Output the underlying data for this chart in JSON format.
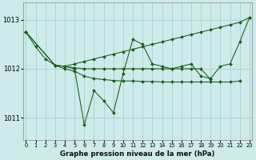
{
  "title": "Graphe pression niveau de la mer (hPa)",
  "bg_color": "#ceeaea",
  "grid_color": "#aed4d4",
  "line_color": "#1a5c1a",
  "marker_color": "#1a5c1a",
  "ylim": [
    1010.55,
    1013.35
  ],
  "yticks": [
    1011,
    1012,
    1013
  ],
  "xlim": [
    -0.3,
    23.3
  ],
  "xticks": [
    0,
    1,
    2,
    3,
    4,
    5,
    6,
    7,
    8,
    9,
    10,
    11,
    12,
    13,
    14,
    15,
    16,
    17,
    18,
    19,
    20,
    21,
    22,
    23
  ],
  "series": [
    {
      "x": [
        0,
        1,
        2,
        3,
        4,
        5,
        6,
        7,
        8,
        9,
        10,
        11,
        12,
        13,
        14,
        15,
        16,
        17,
        18,
        19,
        20,
        21,
        22,
        23
      ],
      "y": [
        1012.75,
        1012.45,
        1012.2,
        1012.07,
        1012.05,
        1012.1,
        1012.15,
        1012.2,
        1012.25,
        1012.3,
        1012.35,
        1012.4,
        1012.45,
        1012.5,
        1012.55,
        1012.6,
        1012.65,
        1012.7,
        1012.75,
        1012.8,
        1012.85,
        1012.9,
        1012.95,
        1013.05
      ]
    },
    {
      "x": [
        0,
        3,
        4,
        5,
        6,
        7,
        8,
        9,
        10,
        11,
        12,
        13,
        14,
        15,
        16,
        17,
        18,
        19,
        20,
        21,
        22,
        23
      ],
      "y": [
        1012.75,
        1012.07,
        1012.05,
        1012.0,
        1010.85,
        1011.55,
        1011.35,
        1011.1,
        1011.9,
        1012.6,
        1012.5,
        1012.1,
        1012.05,
        1012.0,
        1012.05,
        1012.1,
        1011.85,
        1011.8,
        1012.05,
        1012.1,
        1012.55,
        1013.05
      ]
    },
    {
      "x": [
        0,
        3,
        4,
        5,
        6,
        7,
        8,
        9,
        10,
        11,
        12,
        13,
        14,
        15,
        16,
        17,
        18,
        19,
        20,
        21,
        22
      ],
      "y": [
        1012.75,
        1012.07,
        1012.0,
        1011.95,
        1011.85,
        1011.8,
        1011.78,
        1011.76,
        1011.75,
        1011.75,
        1011.74,
        1011.74,
        1011.73,
        1011.73,
        1011.73,
        1011.73,
        1011.73,
        1011.73,
        1011.73,
        1011.73,
        1011.75
      ]
    },
    {
      "x": [
        3,
        4,
        5,
        6,
        7,
        8,
        9,
        10,
        11,
        12,
        13,
        14,
        15,
        16,
        17,
        18,
        19
      ],
      "y": [
        1012.07,
        1012.05,
        1012.02,
        1012.0,
        1012.0,
        1012.0,
        1012.0,
        1012.0,
        1012.0,
        1012.0,
        1012.0,
        1012.0,
        1012.0,
        1012.0,
        1012.0,
        1012.0,
        1011.78
      ]
    }
  ]
}
